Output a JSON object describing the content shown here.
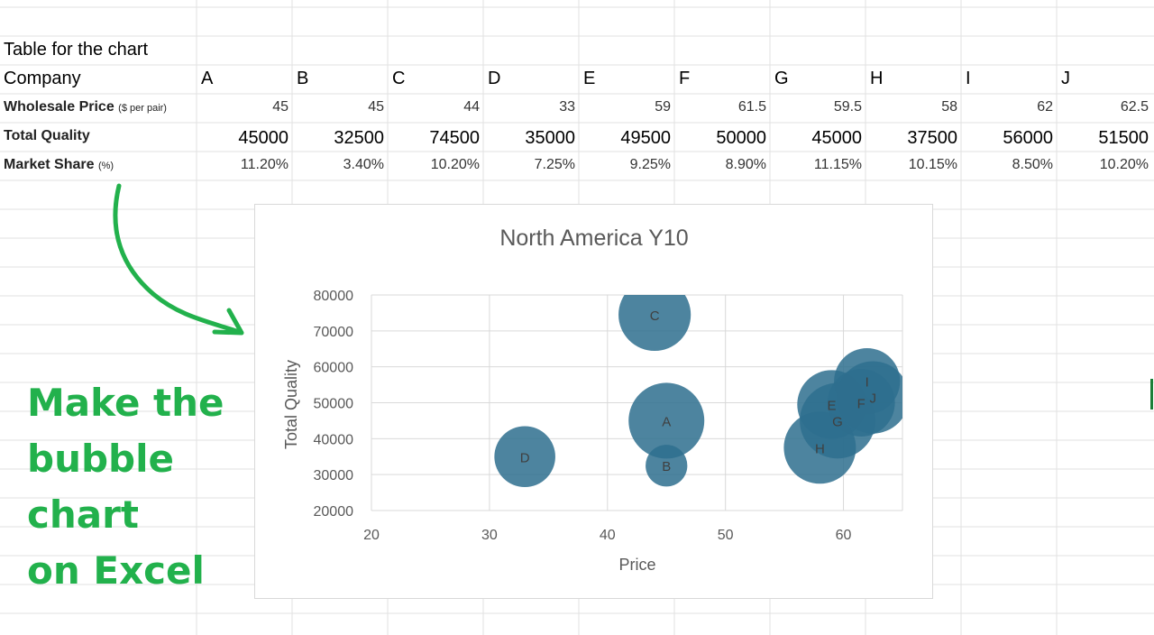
{
  "sheet": {
    "table_title": "Table for the chart",
    "company_label": "Company",
    "rows": {
      "price_label": "Wholesale Price",
      "price_unit": "($ per pair)",
      "quality_label": "Total Quality",
      "share_label": "Market Share",
      "share_unit": "(%)"
    },
    "companies": [
      {
        "name": "A",
        "price": "45",
        "quality": "45000",
        "share": "11.20%"
      },
      {
        "name": "B",
        "price": "45",
        "quality": "32500",
        "share": "3.40%"
      },
      {
        "name": "C",
        "price": "44",
        "quality": "74500",
        "share": "10.20%"
      },
      {
        "name": "D",
        "price": "33",
        "quality": "35000",
        "share": "7.25%"
      },
      {
        "name": "E",
        "price": "59",
        "quality": "49500",
        "share": "9.25%"
      },
      {
        "name": "F",
        "price": "61.5",
        "quality": "50000",
        "share": "8.90%"
      },
      {
        "name": "G",
        "price": "59.5",
        "quality": "45000",
        "share": "11.15%"
      },
      {
        "name": "H",
        "price": "58",
        "quality": "37500",
        "share": "10.15%"
      },
      {
        "name": "I",
        "price": "62",
        "quality": "56000",
        "share": "8.50%"
      },
      {
        "name": "J",
        "price": "62.5",
        "quality": "51500",
        "share": "10.20%"
      }
    ]
  },
  "callout": {
    "lines": [
      "Make the",
      "bubble",
      "chart",
      "on Excel"
    ],
    "color": "#22b14c"
  },
  "colors": {
    "bubble": "#2e6f8e",
    "gridline": "#d9d9d9",
    "arrow": "#22b14c"
  },
  "chart_data": {
    "type": "scatter",
    "variant": "bubble",
    "title": "North America Y10",
    "xlabel": "Price",
    "ylabel": "Total Quality",
    "xlim": [
      20,
      65
    ],
    "ylim": [
      20000,
      80000
    ],
    "xticks": [
      20,
      30,
      40,
      50,
      60
    ],
    "yticks": [
      20000,
      30000,
      40000,
      50000,
      60000,
      70000,
      80000
    ],
    "grid": true,
    "points": [
      {
        "label": "A",
        "x": 45,
        "y": 45000,
        "size": 11.2
      },
      {
        "label": "B",
        "x": 45,
        "y": 32500,
        "size": 3.4
      },
      {
        "label": "C",
        "x": 44,
        "y": 74500,
        "size": 10.2
      },
      {
        "label": "D",
        "x": 33,
        "y": 35000,
        "size": 7.25
      },
      {
        "label": "E",
        "x": 59,
        "y": 49500,
        "size": 9.25
      },
      {
        "label": "F",
        "x": 61.5,
        "y": 50000,
        "size": 8.9
      },
      {
        "label": "G",
        "x": 59.5,
        "y": 45000,
        "size": 11.15
      },
      {
        "label": "H",
        "x": 58,
        "y": 37500,
        "size": 10.15
      },
      {
        "label": "I",
        "x": 62,
        "y": 56000,
        "size": 8.5
      },
      {
        "label": "J",
        "x": 62.5,
        "y": 51500,
        "size": 10.2
      }
    ]
  }
}
